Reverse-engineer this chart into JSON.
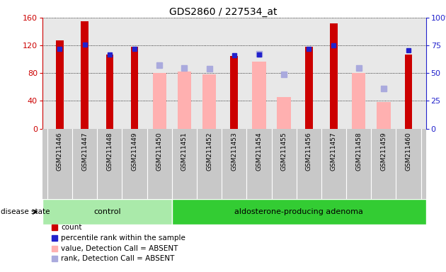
{
  "title": "GDS2860 / 227534_at",
  "samples": [
    "GSM211446",
    "GSM211447",
    "GSM211448",
    "GSM211449",
    "GSM211450",
    "GSM211451",
    "GSM211452",
    "GSM211453",
    "GSM211454",
    "GSM211455",
    "GSM211456",
    "GSM211457",
    "GSM211458",
    "GSM211459",
    "GSM211460"
  ],
  "count_values": [
    127,
    155,
    107,
    118,
    null,
    null,
    null,
    105,
    null,
    null,
    118,
    152,
    null,
    null,
    107
  ],
  "rank_values": [
    115,
    121,
    107,
    115,
    null,
    null,
    null,
    106,
    107,
    null,
    115,
    120,
    null,
    null,
    113
  ],
  "value_absent": [
    null,
    null,
    null,
    null,
    80,
    82,
    78,
    null,
    97,
    46,
    null,
    null,
    80,
    38,
    null
  ],
  "rank_absent": [
    null,
    null,
    null,
    null,
    57.5,
    54.4,
    53.8,
    null,
    67.5,
    48.8,
    null,
    null,
    54.4,
    36.3,
    null
  ],
  "control_count": 5,
  "ylim_left": [
    0,
    160
  ],
  "yticks_left": [
    0,
    40,
    80,
    120,
    160
  ],
  "count_color": "#CC0000",
  "rank_color": "#2222CC",
  "value_absent_color": "#FFB0B0",
  "rank_absent_color": "#AAAADD",
  "control_bg": "#AAEAAA",
  "adenoma_bg": "#33CC33",
  "plot_bg": "#E8E8E8",
  "xtick_bg": "#C8C8C8",
  "legend_items": [
    "count",
    "percentile rank within the sample",
    "value, Detection Call = ABSENT",
    "rank, Detection Call = ABSENT"
  ],
  "legend_colors": [
    "#CC0000",
    "#2222CC",
    "#FFB0B0",
    "#AAAADD"
  ],
  "control_label": "control",
  "adenoma_label": "aldosterone-producing adenoma",
  "disease_state_label": "disease state",
  "right_ytick_labels": [
    "0",
    "25",
    "50",
    "75",
    "100%"
  ]
}
